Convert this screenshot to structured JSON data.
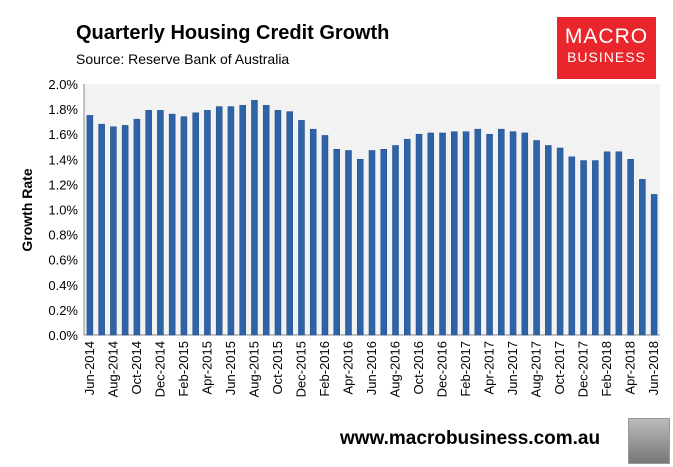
{
  "header": {
    "title": "Quarterly Housing Credit Growth",
    "source": "Source: Reserve Bank of Australia"
  },
  "logo": {
    "line1": "MACRO",
    "line2": "BUSINESS",
    "color": "#e8262b"
  },
  "footer": {
    "website": "www.macrobusiness.com.au"
  },
  "chart_data": {
    "type": "bar",
    "title": "Quarterly Housing Credit Growth",
    "ylabel": "Growth Rate",
    "xlabel": "",
    "ylim": [
      0,
      2.0
    ],
    "yticks": [
      "0.0%",
      "0.2%",
      "0.4%",
      "0.6%",
      "0.8%",
      "1.0%",
      "1.2%",
      "1.4%",
      "1.6%",
      "1.8%",
      "2.0%"
    ],
    "xtick_labels": [
      "Jun-2014",
      "Aug-2014",
      "Oct-2014",
      "Dec-2014",
      "Feb-2015",
      "Apr-2015",
      "Jun-2015",
      "Aug-2015",
      "Oct-2015",
      "Dec-2015",
      "Feb-2016",
      "Apr-2016",
      "Jun-2016",
      "Aug-2016",
      "Oct-2016",
      "Dec-2016",
      "Feb-2017",
      "Apr-2017",
      "Jun-2017",
      "Aug-2017",
      "Oct-2017",
      "Dec-2017",
      "Feb-2018",
      "Apr-2018",
      "Jun-2018"
    ],
    "categories": [
      "Jun-2014",
      "Jul-2014",
      "Aug-2014",
      "Sep-2014",
      "Oct-2014",
      "Nov-2014",
      "Dec-2014",
      "Jan-2015",
      "Feb-2015",
      "Mar-2015",
      "Apr-2015",
      "May-2015",
      "Jun-2015",
      "Jul-2015",
      "Aug-2015",
      "Sep-2015",
      "Oct-2015",
      "Nov-2015",
      "Dec-2015",
      "Jan-2016",
      "Feb-2016",
      "Mar-2016",
      "Apr-2016",
      "May-2016",
      "Jun-2016",
      "Jul-2016",
      "Aug-2016",
      "Sep-2016",
      "Oct-2016",
      "Nov-2016",
      "Dec-2016",
      "Jan-2017",
      "Feb-2017",
      "Mar-2017",
      "Apr-2017",
      "May-2017",
      "Jun-2017",
      "Jul-2017",
      "Aug-2017",
      "Sep-2017",
      "Oct-2017",
      "Nov-2017",
      "Dec-2017",
      "Jan-2018",
      "Feb-2018",
      "Mar-2018",
      "Apr-2018",
      "May-2018",
      "Jun-2018"
    ],
    "values": [
      1.75,
      1.68,
      1.66,
      1.67,
      1.72,
      1.79,
      1.79,
      1.76,
      1.74,
      1.77,
      1.79,
      1.82,
      1.82,
      1.83,
      1.87,
      1.83,
      1.79,
      1.78,
      1.71,
      1.64,
      1.59,
      1.48,
      1.47,
      1.4,
      1.47,
      1.48,
      1.51,
      1.56,
      1.6,
      1.61,
      1.61,
      1.62,
      1.62,
      1.64,
      1.6,
      1.64,
      1.62,
      1.61,
      1.55,
      1.51,
      1.49,
      1.42,
      1.39,
      1.39,
      1.46,
      1.46,
      1.4,
      1.24,
      1.12
    ],
    "grid": false,
    "bar_color": "#2e63a8",
    "plot_background": "#f2f2f2"
  }
}
